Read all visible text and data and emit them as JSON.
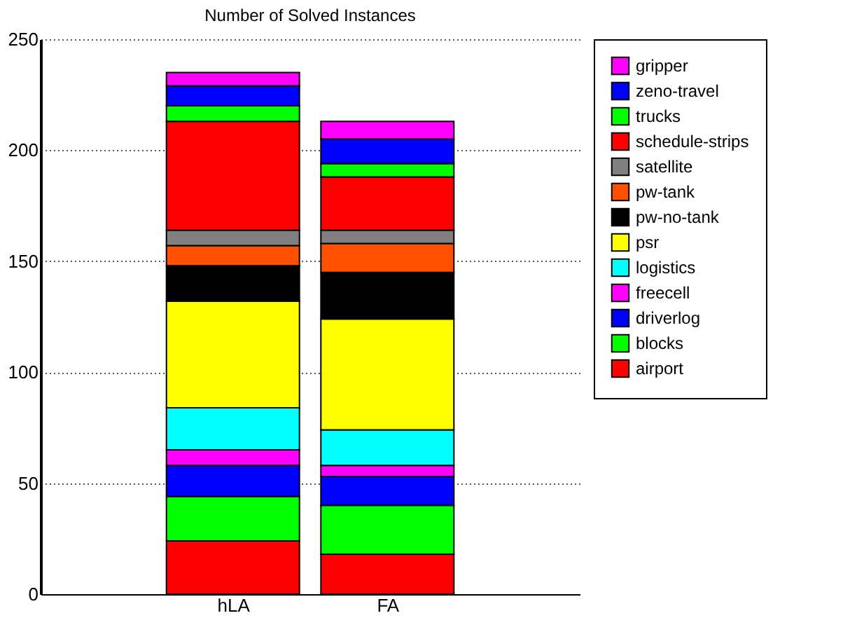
{
  "chart_data": {
    "type": "bar",
    "title": "Number of Solved Instances",
    "stacked": true,
    "categories": [
      "hLA",
      "FA"
    ],
    "series": [
      {
        "name": "airport",
        "color": "#ff0000",
        "values": [
          24,
          18
        ]
      },
      {
        "name": "blocks",
        "color": "#00ff00",
        "values": [
          20,
          22
        ]
      },
      {
        "name": "driverlog",
        "color": "#0000ff",
        "values": [
          14,
          13
        ]
      },
      {
        "name": "freecell",
        "color": "#ff00ff",
        "values": [
          7,
          5
        ]
      },
      {
        "name": "logistics",
        "color": "#00ffff",
        "values": [
          19,
          16
        ]
      },
      {
        "name": "psr",
        "color": "#ffff00",
        "values": [
          48,
          50
        ]
      },
      {
        "name": "pw-no-tank",
        "color": "#000000",
        "values": [
          16,
          21
        ]
      },
      {
        "name": "pw-tank",
        "color": "#ff5000",
        "values": [
          9,
          13
        ]
      },
      {
        "name": "satellite",
        "color": "#808080",
        "values": [
          7,
          6
        ]
      },
      {
        "name": "schedule-strips",
        "color": "#ff0000",
        "values": [
          49,
          24
        ]
      },
      {
        "name": "trucks",
        "color": "#00ff00",
        "values": [
          7,
          6
        ]
      },
      {
        "name": "zeno-travel",
        "color": "#0000ff",
        "values": [
          9,
          11
        ]
      },
      {
        "name": "gripper",
        "color": "#ff00ff",
        "values": [
          6,
          8
        ]
      }
    ],
    "ylim": [
      0,
      250
    ],
    "yticks": [
      0,
      50,
      100,
      150,
      200,
      250
    ],
    "grid": "y",
    "legend": "top right"
  }
}
